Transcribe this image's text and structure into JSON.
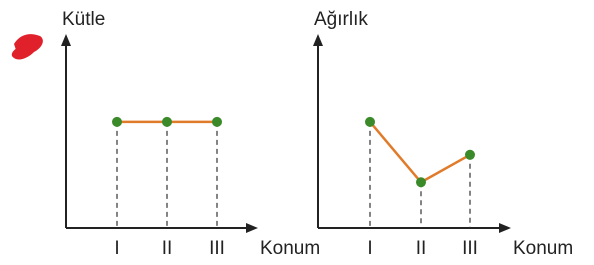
{
  "chart_data": [
    {
      "type": "line",
      "y_label": "Kütle",
      "x_label": "Konum",
      "categories": [
        "I",
        "II",
        "III"
      ],
      "values": [
        5.8,
        5.8,
        5.8
      ],
      "color": "#e07b2a",
      "marker_color": "#3a8a2a",
      "ylim": [
        0,
        10
      ]
    },
    {
      "type": "line",
      "y_label": "Ağırlık",
      "x_label": "Konum",
      "categories": [
        "I",
        "II",
        "III"
      ],
      "values": [
        5.8,
        2.5,
        4.0
      ],
      "color": "#e07b2a",
      "marker_color": "#3a8a2a",
      "ylim": [
        0,
        10
      ]
    }
  ]
}
